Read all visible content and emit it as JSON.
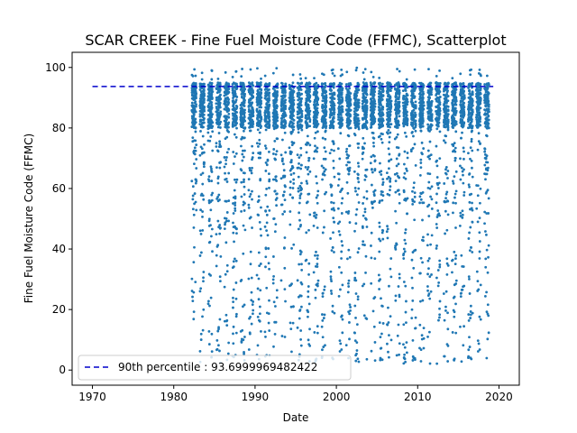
{
  "chart_data": {
    "type": "scatter",
    "title": "SCAR CREEK - Fine Fuel Moisture Code (FFMC), Scatterplot",
    "xlabel": "Date",
    "ylabel": "Fine Fuel Moisture Code (FFMC)",
    "xlim": [
      1967.5,
      2022.5
    ],
    "ylim": [
      -5,
      105
    ],
    "x_ticks": [
      1970,
      1980,
      1990,
      2000,
      2010,
      2020
    ],
    "y_ticks": [
      0,
      20,
      40,
      60,
      80,
      100
    ],
    "grid": false,
    "legend_position": "lower-left",
    "series": [
      {
        "name": "",
        "kind": "scatter",
        "color": "#1f77b4",
        "fire_seasons": [
          1982.5,
          1983.5,
          1984.5,
          1985.5,
          1986.5,
          1987.5,
          1988.5,
          1989.5,
          1990.5,
          1991.5,
          1992.5,
          1993.5,
          1994.5,
          1995.5,
          1996.5,
          1997.5,
          1998.5,
          1999.5,
          2000.5,
          2001.5,
          2002.5,
          2003.5,
          2004.5,
          2005.5,
          2006.5,
          2007.5,
          2008.5,
          2009.5,
          2010.5,
          2011.5,
          2012.5,
          2013.5,
          2014.5,
          2015.5,
          2016.5,
          2017.5,
          2018.5
        ],
        "season_start_end": [
          1982.3,
          2019.3
        ],
        "typical_range": [
          80,
          95
        ],
        "min_value": 0,
        "max_value": 100
      },
      {
        "name": "90th percentile : 93.6999969482422",
        "kind": "line",
        "style": "dashed",
        "color": "#0000cc",
        "x": [
          1970,
          2019.3
        ],
        "y": [
          93.6999969482422,
          93.6999969482422
        ]
      }
    ],
    "legend": [
      {
        "label": "90th percentile : 93.6999969482422",
        "style": "dashed",
        "color": "#0000cc"
      }
    ]
  }
}
